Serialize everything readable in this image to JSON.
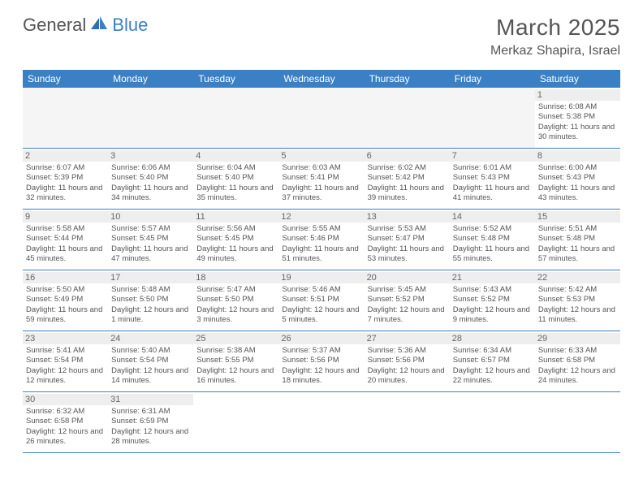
{
  "logo": {
    "part1": "General",
    "part2": "Blue"
  },
  "title": "March 2025",
  "location": "Merkaz Shapira, Israel",
  "colors": {
    "header_bg": "#3b7fc4",
    "header_text": "#ffffff",
    "daynum_bg": "#eeeeee",
    "border": "#3b7fc4",
    "text": "#555555"
  },
  "day_names": [
    "Sunday",
    "Monday",
    "Tuesday",
    "Wednesday",
    "Thursday",
    "Friday",
    "Saturday"
  ],
  "weeks": [
    [
      null,
      null,
      null,
      null,
      null,
      null,
      {
        "n": "1",
        "sunrise": "Sunrise: 6:08 AM",
        "sunset": "Sunset: 5:38 PM",
        "daylight": "Daylight: 11 hours and 30 minutes."
      }
    ],
    [
      {
        "n": "2",
        "sunrise": "Sunrise: 6:07 AM",
        "sunset": "Sunset: 5:39 PM",
        "daylight": "Daylight: 11 hours and 32 minutes."
      },
      {
        "n": "3",
        "sunrise": "Sunrise: 6:06 AM",
        "sunset": "Sunset: 5:40 PM",
        "daylight": "Daylight: 11 hours and 34 minutes."
      },
      {
        "n": "4",
        "sunrise": "Sunrise: 6:04 AM",
        "sunset": "Sunset: 5:40 PM",
        "daylight": "Daylight: 11 hours and 35 minutes."
      },
      {
        "n": "5",
        "sunrise": "Sunrise: 6:03 AM",
        "sunset": "Sunset: 5:41 PM",
        "daylight": "Daylight: 11 hours and 37 minutes."
      },
      {
        "n": "6",
        "sunrise": "Sunrise: 6:02 AM",
        "sunset": "Sunset: 5:42 PM",
        "daylight": "Daylight: 11 hours and 39 minutes."
      },
      {
        "n": "7",
        "sunrise": "Sunrise: 6:01 AM",
        "sunset": "Sunset: 5:43 PM",
        "daylight": "Daylight: 11 hours and 41 minutes."
      },
      {
        "n": "8",
        "sunrise": "Sunrise: 6:00 AM",
        "sunset": "Sunset: 5:43 PM",
        "daylight": "Daylight: 11 hours and 43 minutes."
      }
    ],
    [
      {
        "n": "9",
        "sunrise": "Sunrise: 5:58 AM",
        "sunset": "Sunset: 5:44 PM",
        "daylight": "Daylight: 11 hours and 45 minutes."
      },
      {
        "n": "10",
        "sunrise": "Sunrise: 5:57 AM",
        "sunset": "Sunset: 5:45 PM",
        "daylight": "Daylight: 11 hours and 47 minutes."
      },
      {
        "n": "11",
        "sunrise": "Sunrise: 5:56 AM",
        "sunset": "Sunset: 5:45 PM",
        "daylight": "Daylight: 11 hours and 49 minutes."
      },
      {
        "n": "12",
        "sunrise": "Sunrise: 5:55 AM",
        "sunset": "Sunset: 5:46 PM",
        "daylight": "Daylight: 11 hours and 51 minutes."
      },
      {
        "n": "13",
        "sunrise": "Sunrise: 5:53 AM",
        "sunset": "Sunset: 5:47 PM",
        "daylight": "Daylight: 11 hours and 53 minutes."
      },
      {
        "n": "14",
        "sunrise": "Sunrise: 5:52 AM",
        "sunset": "Sunset: 5:48 PM",
        "daylight": "Daylight: 11 hours and 55 minutes."
      },
      {
        "n": "15",
        "sunrise": "Sunrise: 5:51 AM",
        "sunset": "Sunset: 5:48 PM",
        "daylight": "Daylight: 11 hours and 57 minutes."
      }
    ],
    [
      {
        "n": "16",
        "sunrise": "Sunrise: 5:50 AM",
        "sunset": "Sunset: 5:49 PM",
        "daylight": "Daylight: 11 hours and 59 minutes."
      },
      {
        "n": "17",
        "sunrise": "Sunrise: 5:48 AM",
        "sunset": "Sunset: 5:50 PM",
        "daylight": "Daylight: 12 hours and 1 minute."
      },
      {
        "n": "18",
        "sunrise": "Sunrise: 5:47 AM",
        "sunset": "Sunset: 5:50 PM",
        "daylight": "Daylight: 12 hours and 3 minutes."
      },
      {
        "n": "19",
        "sunrise": "Sunrise: 5:46 AM",
        "sunset": "Sunset: 5:51 PM",
        "daylight": "Daylight: 12 hours and 5 minutes."
      },
      {
        "n": "20",
        "sunrise": "Sunrise: 5:45 AM",
        "sunset": "Sunset: 5:52 PM",
        "daylight": "Daylight: 12 hours and 7 minutes."
      },
      {
        "n": "21",
        "sunrise": "Sunrise: 5:43 AM",
        "sunset": "Sunset: 5:52 PM",
        "daylight": "Daylight: 12 hours and 9 minutes."
      },
      {
        "n": "22",
        "sunrise": "Sunrise: 5:42 AM",
        "sunset": "Sunset: 5:53 PM",
        "daylight": "Daylight: 12 hours and 11 minutes."
      }
    ],
    [
      {
        "n": "23",
        "sunrise": "Sunrise: 5:41 AM",
        "sunset": "Sunset: 5:54 PM",
        "daylight": "Daylight: 12 hours and 12 minutes."
      },
      {
        "n": "24",
        "sunrise": "Sunrise: 5:40 AM",
        "sunset": "Sunset: 5:54 PM",
        "daylight": "Daylight: 12 hours and 14 minutes."
      },
      {
        "n": "25",
        "sunrise": "Sunrise: 5:38 AM",
        "sunset": "Sunset: 5:55 PM",
        "daylight": "Daylight: 12 hours and 16 minutes."
      },
      {
        "n": "26",
        "sunrise": "Sunrise: 5:37 AM",
        "sunset": "Sunset: 5:56 PM",
        "daylight": "Daylight: 12 hours and 18 minutes."
      },
      {
        "n": "27",
        "sunrise": "Sunrise: 5:36 AM",
        "sunset": "Sunset: 5:56 PM",
        "daylight": "Daylight: 12 hours and 20 minutes."
      },
      {
        "n": "28",
        "sunrise": "Sunrise: 6:34 AM",
        "sunset": "Sunset: 6:57 PM",
        "daylight": "Daylight: 12 hours and 22 minutes."
      },
      {
        "n": "29",
        "sunrise": "Sunrise: 6:33 AM",
        "sunset": "Sunset: 6:58 PM",
        "daylight": "Daylight: 12 hours and 24 minutes."
      }
    ],
    [
      {
        "n": "30",
        "sunrise": "Sunrise: 6:32 AM",
        "sunset": "Sunset: 6:58 PM",
        "daylight": "Daylight: 12 hours and 26 minutes."
      },
      {
        "n": "31",
        "sunrise": "Sunrise: 6:31 AM",
        "sunset": "Sunset: 6:59 PM",
        "daylight": "Daylight: 12 hours and 28 minutes."
      },
      null,
      null,
      null,
      null,
      null
    ]
  ]
}
